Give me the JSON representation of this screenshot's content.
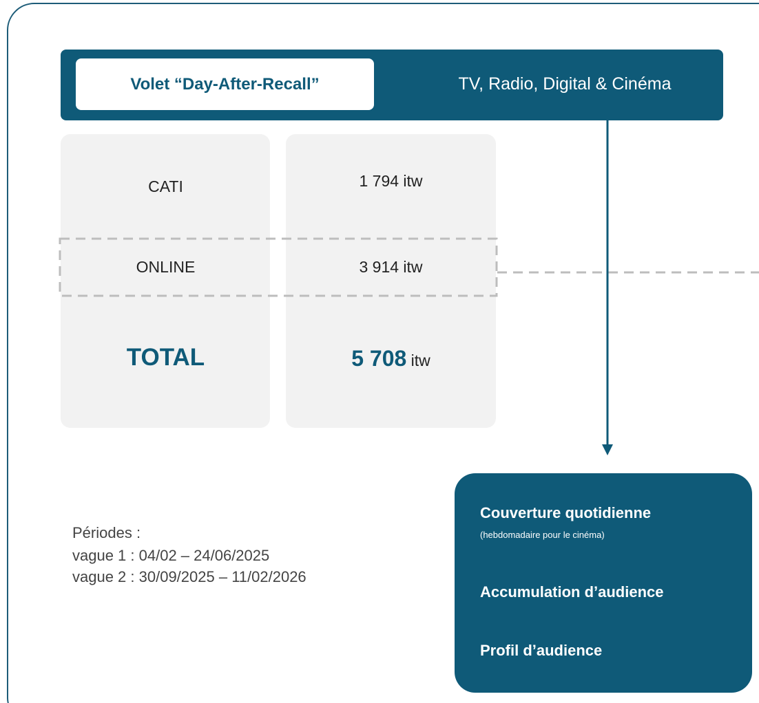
{
  "header": {
    "title": "Volet “Day-After-Recall”",
    "subtitle": "TV, Radio, Digital & Cinéma"
  },
  "table": {
    "rows": [
      [
        "CATI",
        "1 794 itw"
      ],
      [
        "ONLINE",
        "3 914 itw"
      ]
    ],
    "total": {
      "label": "TOTAL",
      "value": "5 708",
      "unit": "itw"
    }
  },
  "periods": {
    "title": "Périodes :",
    "lines": [
      "vague 1 : 04/02 – 24/06/2025",
      "vague 2 : 30/09/2025 – 11/02/2026"
    ]
  },
  "outcomes": [
    {
      "title": "Couverture quotidienne",
      "note": "(hebdomadaire pour le cinéma)"
    },
    {
      "title": "Accumulation d’audience"
    },
    {
      "title": "Profil d’audience"
    }
  ]
}
